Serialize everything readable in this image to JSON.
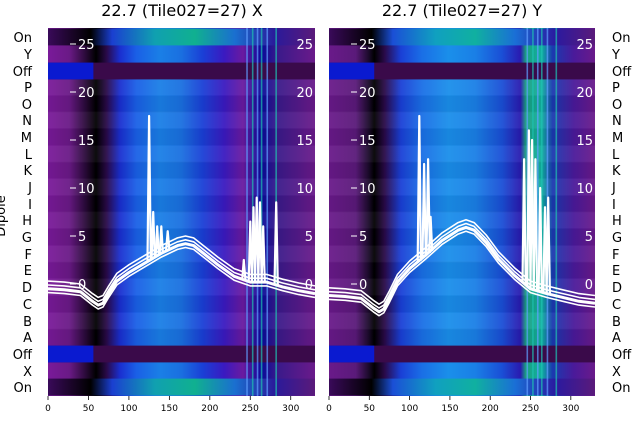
{
  "chart_data": [
    {
      "type": "heatmap",
      "title": "22.7 (Tile027=27) X",
      "ylabel": "Dipole",
      "x_ticks": [
        0,
        50,
        100,
        150,
        200,
        250,
        300
      ],
      "xlim": [
        0,
        330
      ],
      "overlay_ticks": [
        0,
        5,
        10,
        15,
        20,
        25
      ],
      "overlay_ylim": [
        -1.5,
        26.5
      ],
      "row_labels_bottom_to_top": [
        "On",
        "X",
        "Off",
        "A",
        "B",
        "C",
        "D",
        "E",
        "F",
        "G",
        "H",
        "I",
        "J",
        "K",
        "L",
        "M",
        "N",
        "O",
        "P",
        "Off",
        "Y",
        "On"
      ],
      "line_series": [
        {
          "x": [
            0,
            20,
            40,
            55,
            62,
            68,
            75,
            85,
            100,
            120,
            140,
            160,
            170,
            180,
            195,
            210,
            230,
            250,
            270,
            290,
            310,
            330
          ],
          "y": [
            -0.5,
            -0.6,
            -0.8,
            -1.8,
            -2.2,
            -2.0,
            -1.0,
            0.3,
            1.2,
            2.2,
            3.2,
            4.0,
            4.2,
            4.0,
            3.0,
            2.0,
            0.8,
            0.2,
            0.2,
            -0.3,
            -0.7,
            -1.0
          ]
        }
      ],
      "spikes": [
        {
          "x": 125,
          "peak": 17.5
        },
        {
          "x": 130,
          "peak": 7.5
        },
        {
          "x": 135,
          "peak": 6.0
        },
        {
          "x": 140,
          "peak": 6.0
        },
        {
          "x": 148,
          "peak": 5.5
        },
        {
          "x": 242,
          "peak": 2.5
        },
        {
          "x": 250,
          "peak": 6.5
        },
        {
          "x": 254,
          "peak": 8.0
        },
        {
          "x": 258,
          "peak": 9.0
        },
        {
          "x": 262,
          "peak": 8.5
        },
        {
          "x": 266,
          "peak": 6.0
        },
        {
          "x": 282,
          "peak": 8.5
        }
      ]
    },
    {
      "type": "heatmap",
      "title": "22.7 (Tile027=27) Y",
      "x_ticks": [
        0,
        50,
        100,
        150,
        200,
        250,
        300
      ],
      "xlim": [
        0,
        330
      ],
      "overlay_ticks": [
        0,
        5,
        10,
        15,
        20,
        25
      ],
      "overlay_ylim": [
        -1.5,
        26.5
      ],
      "row_labels_bottom_to_top": [
        "On",
        "X",
        "Off",
        "A",
        "B",
        "C",
        "D",
        "E",
        "F",
        "G",
        "H",
        "I",
        "J",
        "K",
        "L",
        "M",
        "N",
        "O",
        "P",
        "Off",
        "Y",
        "On"
      ],
      "line_series": [
        {
          "x": [
            0,
            20,
            40,
            55,
            62,
            68,
            75,
            85,
            100,
            120,
            140,
            160,
            170,
            180,
            195,
            210,
            230,
            250,
            270,
            290,
            310,
            330
          ],
          "y": [
            -1.2,
            -1.3,
            -1.5,
            -2.5,
            -2.9,
            -2.6,
            -1.5,
            0.2,
            1.6,
            3.0,
            4.5,
            5.6,
            5.9,
            5.6,
            4.3,
            2.6,
            0.9,
            -0.5,
            -1.0,
            -1.4,
            -1.8,
            -2.0
          ]
        }
      ],
      "spikes": [
        {
          "x": 112,
          "peak": 17.5
        },
        {
          "x": 118,
          "peak": 12.5
        },
        {
          "x": 123,
          "peak": 13.0
        },
        {
          "x": 126,
          "peak": 7.0
        },
        {
          "x": 242,
          "peak": 13.0
        },
        {
          "x": 248,
          "peak": 16.0
        },
        {
          "x": 252,
          "peak": 15.0
        },
        {
          "x": 256,
          "peak": 13.0
        },
        {
          "x": 262,
          "peak": 10.0
        },
        {
          "x": 268,
          "peak": 8.0
        },
        {
          "x": 272,
          "peak": 9.0
        }
      ]
    }
  ]
}
